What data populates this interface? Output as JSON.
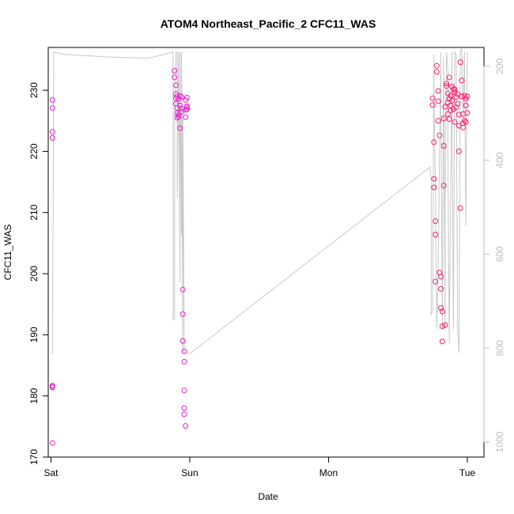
{
  "chart_data": {
    "type": "scatter",
    "title": "ATOM4 Northeast_Pacific_2 CFC11_WAS",
    "xlabel": "Date",
    "ylabel": "CFC11_WAS",
    "x_ticks": [
      "Sat",
      "Sun",
      "Mon",
      "Tue"
    ],
    "xlim": [
      -0.02,
      3.12
    ],
    "ylim": [
      170,
      237
    ],
    "y_ticks": [
      170,
      180,
      190,
      200,
      210,
      220,
      230
    ],
    "y2lim": [
      1032,
      160
    ],
    "y2_ticks": [
      200,
      400,
      600,
      800,
      1000
    ],
    "grid": false,
    "colors": {
      "points": "#ee1ecf",
      "points_late": "#ff1a6e",
      "line": "#c8c8c8"
    },
    "series": [
      {
        "kind": "points",
        "x": [
          0.01,
          0.01,
          0.01,
          0.01,
          0.01,
          0.01,
          0.01,
          0.01,
          0.89,
          0.89,
          0.9,
          0.9,
          0.9,
          0.9,
          0.91,
          0.91,
          0.91,
          0.91,
          0.92,
          0.92,
          0.92,
          0.93,
          0.93,
          0.93,
          0.94,
          0.94,
          0.94,
          0.95,
          0.95,
          0.95,
          0.96,
          0.96,
          0.96,
          0.96,
          0.96,
          0.97,
          0.97,
          0.97,
          0.97,
          0.98,
          0.98,
          0.98,
          0.98,
          0.98,
          2.75,
          2.75,
          2.76,
          2.76,
          2.76,
          2.77,
          2.77,
          2.77,
          2.78,
          2.78,
          2.79,
          2.79,
          2.79,
          2.8,
          2.8,
          2.81,
          2.81,
          2.81,
          2.82,
          2.82,
          2.82,
          2.83,
          2.83,
          2.83,
          2.84,
          2.84,
          2.85,
          2.85,
          2.86,
          2.86,
          2.86,
          2.87,
          2.87,
          2.87,
          2.88,
          2.88,
          2.88,
          2.89,
          2.89,
          2.9,
          2.9,
          2.91,
          2.91,
          2.91,
          2.92,
          2.92,
          2.93,
          2.93,
          2.94,
          2.94,
          2.94,
          2.95,
          2.95,
          2.96,
          2.96,
          2.97,
          2.97,
          2.97,
          2.98,
          2.98,
          2.99,
          2.99,
          2.99,
          3.0,
          3.0
        ],
        "y": [
          228.4,
          227.1,
          223.2,
          222.2,
          181.7,
          181.4,
          181.5,
          172.3,
          233.2,
          232.1,
          230.8,
          229.4,
          228.7,
          227.8,
          226.3,
          225.5,
          229.0,
          227.1,
          228.6,
          226.0,
          225.7,
          223.8,
          227.5,
          229.1,
          226.5,
          228.9,
          227.0,
          197.4,
          193.4,
          189.0,
          187.3,
          185.6,
          180.9,
          178.0,
          177.0,
          175.1,
          226.8,
          228.4,
          225.6,
          226.9,
          227.2,
          228.8,
          227.4,
          226.9,
          228.7,
          227.6,
          221.5,
          215.5,
          214.1,
          208.6,
          206.4,
          198.7,
          234.0,
          233.0,
          229.9,
          228.2,
          225.0,
          222.6,
          200.2,
          199.5,
          197.5,
          194.4,
          193.8,
          188.9,
          191.4,
          214.4,
          220.9,
          225.4,
          191.6,
          227.3,
          231.1,
          230.7,
          228.0,
          226.1,
          229.5,
          228.6,
          232.1,
          225.3,
          226.7,
          229.1,
          227.5,
          230.6,
          228.3,
          226.9,
          230.2,
          229.7,
          224.8,
          230.1,
          227.2,
          228.9,
          229.4,
          227.8,
          226.0,
          220.0,
          224.2,
          210.7,
          234.6,
          231.6,
          229.0,
          224.6,
          223.9,
          226.1,
          225.0,
          229.1,
          227.5,
          228.6,
          224.8,
          226.3,
          229.0
        ]
      },
      {
        "kind": "line",
        "y2_axis": true,
        "x": [
          0.01,
          0.01,
          0.02,
          0.1,
          0.4,
          0.7,
          0.88,
          0.88,
          0.89,
          0.89,
          0.9,
          0.91,
          0.91,
          0.92,
          0.93,
          0.93,
          0.94,
          0.94,
          0.95,
          0.95,
          0.96,
          0.96,
          0.97,
          0.97,
          0.98,
          0.98,
          0.99,
          1.0,
          2.73,
          2.74,
          2.74,
          2.75,
          2.76,
          2.76,
          2.77,
          2.78,
          2.79,
          2.8,
          2.81,
          2.81,
          2.82,
          2.83,
          2.84,
          2.84,
          2.85,
          2.86,
          2.86,
          2.87,
          2.88,
          2.89,
          2.89,
          2.9,
          2.91,
          2.92,
          2.93,
          2.94,
          2.95,
          2.96,
          2.97,
          2.98,
          2.99,
          3.0
        ],
        "y": [
          810,
          812,
          170,
          175,
          180,
          183,
          170,
          740,
          740,
          330,
          170,
          170,
          480,
          170,
          660,
          170,
          560,
          170,
          810,
          290,
          810,
          810,
          810,
          810,
          810,
          810,
          812,
          812,
          415,
          440,
          730,
          720,
          175,
          260,
          450,
          760,
          640,
          380,
          170,
          300,
          760,
          180,
          760,
          480,
          170,
          210,
          380,
          790,
          470,
          170,
          310,
          760,
          170,
          175,
          760,
          810,
          170,
          160,
          320,
          170,
          540,
          170
        ]
      }
    ]
  }
}
